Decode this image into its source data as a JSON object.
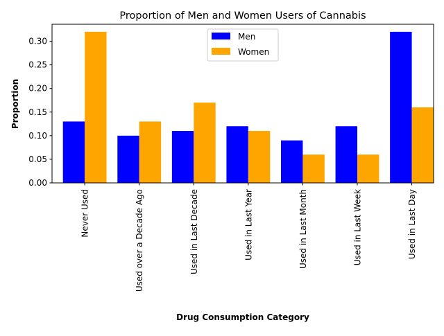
{
  "chart_data": {
    "type": "bar",
    "title": "Proportion of Men and Women Users of Cannabis",
    "xlabel": "Drug Consumption Category",
    "ylabel": "Proportion",
    "categories": [
      "Never Used",
      "Used over a Decade Ago",
      "Used in Last Decade",
      "Used in Last Year",
      "Used in Last Month",
      "Used in Last Week",
      "Used in Last Day"
    ],
    "series": [
      {
        "name": "Men",
        "color": "#0000ff",
        "values": [
          0.13,
          0.1,
          0.11,
          0.12,
          0.09,
          0.12,
          0.32
        ]
      },
      {
        "name": "Women",
        "color": "#ffa500",
        "values": [
          0.32,
          0.13,
          0.17,
          0.11,
          0.06,
          0.06,
          0.16
        ]
      }
    ],
    "ylim": [
      0,
      0.336
    ],
    "yticks": [
      "0.00",
      "0.05",
      "0.10",
      "0.15",
      "0.20",
      "0.25",
      "0.30"
    ],
    "grid": false,
    "legend_position": "top-center"
  }
}
